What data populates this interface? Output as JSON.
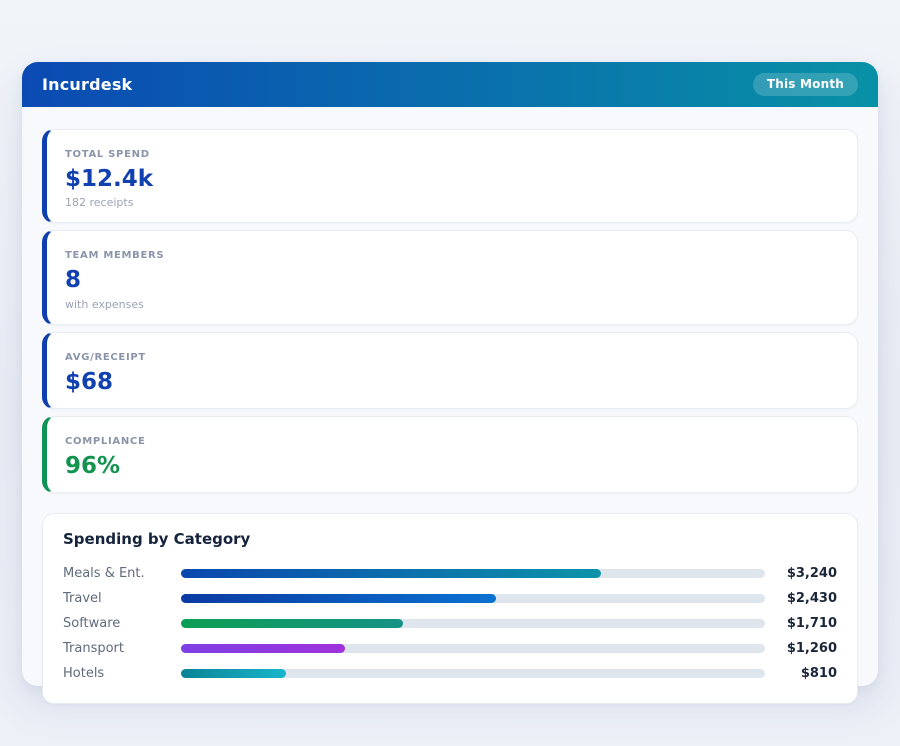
{
  "header": {
    "title": "Incurdesk",
    "badge": "This Month",
    "gradient_start": "#0b4ab3",
    "gradient_end": "#0891a6"
  },
  "stats": [
    {
      "label": "TOTAL SPEND",
      "value": "$12.4k",
      "subtitle": "182 receipts",
      "accent_color": "#0d3fad",
      "value_color": "#1140b0"
    },
    {
      "label": "TEAM MEMBERS",
      "value": "8",
      "subtitle": "with expenses",
      "accent_color": "#0d3fad",
      "value_color": "#1140b0"
    },
    {
      "label": "AVG/RECEIPT",
      "value": "$68",
      "subtitle": "",
      "accent_color": "#0d3fad",
      "value_color": "#1140b0"
    },
    {
      "label": "COMPLIANCE",
      "value": "96%",
      "subtitle": "",
      "accent_color": "#0e9355",
      "value_color": "#12944f"
    }
  ],
  "chart_data": {
    "type": "bar",
    "orientation": "horizontal",
    "title": "Spending by Category",
    "categories": [
      "Meals & Ent.",
      "Travel",
      "Software",
      "Transport",
      "Hotels"
    ],
    "values": [
      3240,
      2430,
      1710,
      1260,
      810
    ],
    "value_labels": [
      "$3,240",
      "$2,430",
      "$1,710",
      "$1,260",
      "$810"
    ],
    "percent": [
      72,
      54,
      38,
      28,
      18
    ],
    "xlim": [
      0,
      4500
    ],
    "track_color": "#dfe5ed",
    "bar_colors": [
      [
        "#0b47ae",
        "#0d93aa"
      ],
      [
        "#0a3aa3",
        "#0b72d0"
      ],
      [
        "#0c9e53",
        "#169287"
      ],
      [
        "#7e3fe4",
        "#9f32dc"
      ],
      [
        "#0c8396",
        "#17b5cb"
      ]
    ]
  }
}
